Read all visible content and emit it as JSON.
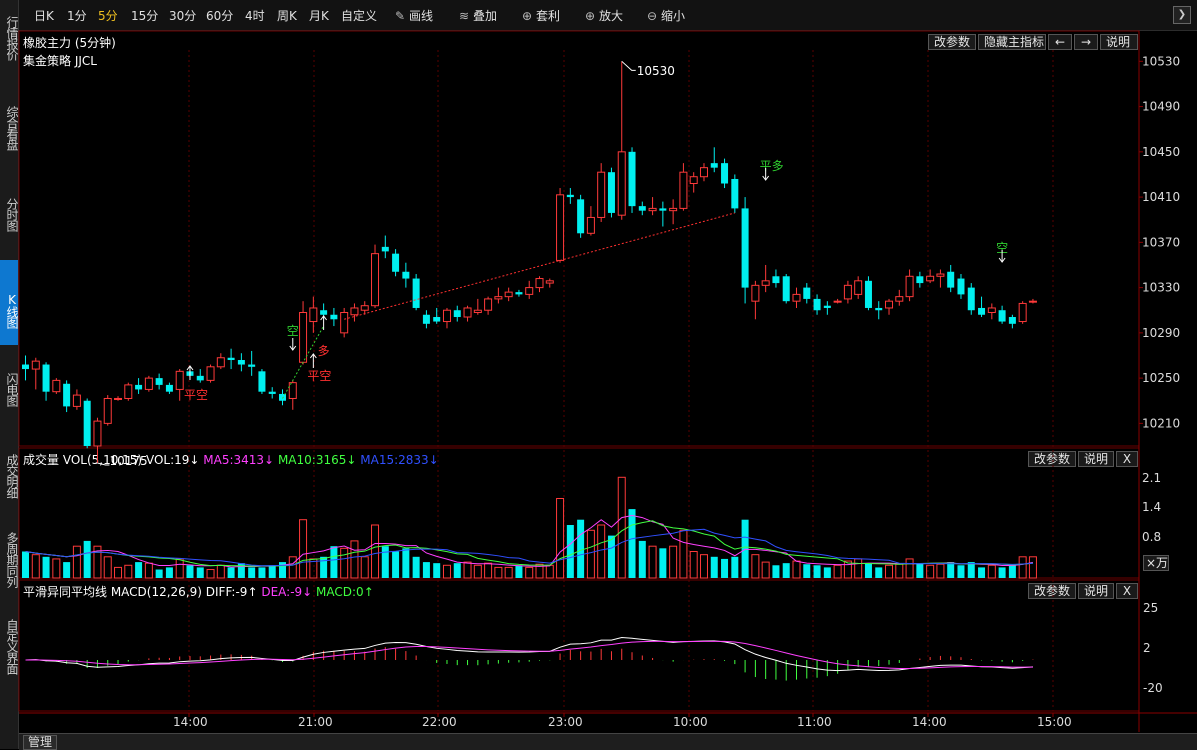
{
  "left_nav": [
    {
      "label": "行情报价",
      "active": false
    },
    {
      "label": "综合看盘",
      "active": false
    },
    {
      "label": "分时图",
      "active": false
    },
    {
      "label": "K线图",
      "active": true
    },
    {
      "label": "闪电图",
      "active": false
    },
    {
      "label": "成交明细",
      "active": false
    },
    {
      "label": "多周期同列",
      "active": false
    },
    {
      "label": "自定义界面",
      "active": false
    }
  ],
  "toolbar": {
    "periods": [
      {
        "label": "日K",
        "selected": false
      },
      {
        "label": "1分",
        "selected": false
      },
      {
        "label": "5分",
        "selected": true
      },
      {
        "label": "15分",
        "selected": false
      },
      {
        "label": "30分",
        "selected": false
      },
      {
        "label": "60分",
        "selected": false
      },
      {
        "label": "4时",
        "selected": false
      },
      {
        "label": "周K",
        "selected": false
      },
      {
        "label": "月K",
        "selected": false
      },
      {
        "label": "自定义",
        "selected": false
      }
    ],
    "tools": [
      {
        "label": "画线",
        "icon": "pencil-icon"
      },
      {
        "label": "叠加",
        "icon": "stack-icon"
      },
      {
        "label": "套利",
        "icon": "arbitrage-icon"
      },
      {
        "label": "放大",
        "icon": "zoom-in-icon"
      },
      {
        "label": "缩小",
        "icon": "zoom-out-icon"
      }
    ],
    "expand_icon": "expand-icon"
  },
  "main_panel": {
    "title": "橡胶主力 (5分钟)",
    "strategy": "集金策略 JJCL",
    "buttons": [
      "改参数",
      "隐藏主指标",
      "←",
      "→",
      "说明"
    ],
    "y_ticks": [
      "10530",
      "10490",
      "10450",
      "10410",
      "10370",
      "10330",
      "10290",
      "10250",
      "10210"
    ],
    "annotations": {
      "high": "10530",
      "low": "10175"
    },
    "signals": [
      {
        "text": "平空",
        "color": "#ff3030"
      },
      {
        "text": "空",
        "color": "#30d030"
      },
      {
        "text": "平空",
        "color": "#ff3030"
      },
      {
        "text": "多",
        "color": "#ff3030"
      },
      {
        "text": "平多",
        "color": "#30d030"
      },
      {
        "text": "空",
        "color": "#30d030"
      }
    ]
  },
  "vol_panel": {
    "label": "成交量 VOL(5,10,15)",
    "vol": "VOL:19↓",
    "ma5": "MA5:3413↓",
    "ma10": "MA10:3165↓",
    "ma15": "MA15:2833↓",
    "buttons": [
      "改参数",
      "说明",
      "X"
    ],
    "y_ticks": [
      "2.1",
      "1.4",
      "0.8"
    ],
    "unit": "×万",
    "colors": {
      "ma5": "#ff40ff",
      "ma10": "#40ff40",
      "ma15": "#3050ff"
    }
  },
  "macd_panel": {
    "label": "平滑异同平均线 MACD(12,26,9)",
    "diff": "DIFF:-9↑",
    "dea": "DEA:-9↓",
    "macd": "MACD:0↑",
    "buttons": [
      "改参数",
      "说明",
      "X"
    ],
    "y_ticks": [
      "25",
      "2",
      "-20"
    ],
    "colors": {
      "diff": "#ffffff",
      "dea": "#ff40ff",
      "macd": "#40ff40"
    }
  },
  "time_axis": [
    "14:00",
    "21:00",
    "22:00",
    "23:00",
    "10:00",
    "11:00",
    "14:00",
    "15:00"
  ],
  "bottom_tab": "管理",
  "chart_data": {
    "type": "candlestick",
    "price_ylim": [
      10190,
      10540
    ],
    "candles": [
      {
        "o": 10262,
        "h": 10270,
        "l": 10248,
        "c": 10258
      },
      {
        "o": 10258,
        "h": 10268,
        "l": 10240,
        "c": 10265
      },
      {
        "o": 10262,
        "h": 10264,
        "l": 10230,
        "c": 10238
      },
      {
        "o": 10238,
        "h": 10250,
        "l": 10236,
        "c": 10248
      },
      {
        "o": 10245,
        "h": 10248,
        "l": 10220,
        "c": 10225
      },
      {
        "o": 10225,
        "h": 10240,
        "l": 10222,
        "c": 10235
      },
      {
        "o": 10230,
        "h": 10232,
        "l": 10188,
        "c": 10190
      },
      {
        "o": 10190,
        "h": 10215,
        "l": 10175,
        "c": 10212
      },
      {
        "o": 10210,
        "h": 10235,
        "l": 10208,
        "c": 10232
      },
      {
        "o": 10232,
        "h": 10234,
        "l": 10230,
        "c": 10232
      },
      {
        "o": 10232,
        "h": 10246,
        "l": 10230,
        "c": 10244
      },
      {
        "o": 10244,
        "h": 10250,
        "l": 10236,
        "c": 10240
      },
      {
        "o": 10240,
        "h": 10252,
        "l": 10238,
        "c": 10250
      },
      {
        "o": 10250,
        "h": 10254,
        "l": 10240,
        "c": 10244
      },
      {
        "o": 10244,
        "h": 10246,
        "l": 10236,
        "c": 10238
      },
      {
        "o": 10240,
        "h": 10258,
        "l": 10230,
        "c": 10256
      },
      {
        "o": 10256,
        "h": 10260,
        "l": 10250,
        "c": 10252
      },
      {
        "o": 10252,
        "h": 10258,
        "l": 10246,
        "c": 10248
      },
      {
        "o": 10248,
        "h": 10262,
        "l": 10246,
        "c": 10260
      },
      {
        "o": 10260,
        "h": 10272,
        "l": 10258,
        "c": 10268
      },
      {
        "o": 10268,
        "h": 10276,
        "l": 10258,
        "c": 10266
      },
      {
        "o": 10266,
        "h": 10272,
        "l": 10256,
        "c": 10262
      },
      {
        "o": 10262,
        "h": 10274,
        "l": 10252,
        "c": 10260
      },
      {
        "o": 10256,
        "h": 10258,
        "l": 10236,
        "c": 10238
      },
      {
        "o": 10238,
        "h": 10242,
        "l": 10232,
        "c": 10236
      },
      {
        "o": 10236,
        "h": 10240,
        "l": 10226,
        "c": 10230
      },
      {
        "o": 10232,
        "h": 10248,
        "l": 10222,
        "c": 10246
      },
      {
        "o": 10264,
        "h": 10318,
        "l": 10262,
        "c": 10308
      },
      {
        "o": 10300,
        "h": 10322,
        "l": 10290,
        "c": 10312
      },
      {
        "o": 10310,
        "h": 10316,
        "l": 10302,
        "c": 10306
      },
      {
        "o": 10306,
        "h": 10312,
        "l": 10296,
        "c": 10302
      },
      {
        "o": 10290,
        "h": 10312,
        "l": 10286,
        "c": 10308
      },
      {
        "o": 10306,
        "h": 10316,
        "l": 10300,
        "c": 10312
      },
      {
        "o": 10310,
        "h": 10318,
        "l": 10306,
        "c": 10314
      },
      {
        "o": 10314,
        "h": 10368,
        "l": 10312,
        "c": 10360
      },
      {
        "o": 10366,
        "h": 10376,
        "l": 10356,
        "c": 10362
      },
      {
        "o": 10360,
        "h": 10364,
        "l": 10340,
        "c": 10344
      },
      {
        "o": 10344,
        "h": 10352,
        "l": 10330,
        "c": 10338
      },
      {
        "o": 10338,
        "h": 10342,
        "l": 10310,
        "c": 10312
      },
      {
        "o": 10306,
        "h": 10310,
        "l": 10294,
        "c": 10298
      },
      {
        "o": 10304,
        "h": 10312,
        "l": 10298,
        "c": 10300
      },
      {
        "o": 10300,
        "h": 10312,
        "l": 10294,
        "c": 10310
      },
      {
        "o": 10310,
        "h": 10314,
        "l": 10300,
        "c": 10304
      },
      {
        "o": 10304,
        "h": 10314,
        "l": 10300,
        "c": 10312
      },
      {
        "o": 10308,
        "h": 10320,
        "l": 10306,
        "c": 10310
      },
      {
        "o": 10310,
        "h": 10322,
        "l": 10306,
        "c": 10320
      },
      {
        "o": 10320,
        "h": 10330,
        "l": 10316,
        "c": 10322
      },
      {
        "o": 10322,
        "h": 10330,
        "l": 10318,
        "c": 10326
      },
      {
        "o": 10326,
        "h": 10328,
        "l": 10322,
        "c": 10324
      },
      {
        "o": 10324,
        "h": 10336,
        "l": 10320,
        "c": 10330
      },
      {
        "o": 10330,
        "h": 10340,
        "l": 10326,
        "c": 10338
      },
      {
        "o": 10334,
        "h": 10338,
        "l": 10330,
        "c": 10336
      },
      {
        "o": 10354,
        "h": 10418,
        "l": 10352,
        "c": 10412
      },
      {
        "o": 10412,
        "h": 10418,
        "l": 10404,
        "c": 10410
      },
      {
        "o": 10408,
        "h": 10412,
        "l": 10374,
        "c": 10378
      },
      {
        "o": 10378,
        "h": 10402,
        "l": 10376,
        "c": 10392
      },
      {
        "o": 10392,
        "h": 10440,
        "l": 10388,
        "c": 10432
      },
      {
        "o": 10432,
        "h": 10436,
        "l": 10392,
        "c": 10396
      },
      {
        "o": 10394,
        "h": 10530,
        "l": 10390,
        "c": 10450
      },
      {
        "o": 10450,
        "h": 10454,
        "l": 10396,
        "c": 10402
      },
      {
        "o": 10402,
        "h": 10406,
        "l": 10394,
        "c": 10398
      },
      {
        "o": 10398,
        "h": 10410,
        "l": 10394,
        "c": 10400
      },
      {
        "o": 10400,
        "h": 10406,
        "l": 10384,
        "c": 10398
      },
      {
        "o": 10398,
        "h": 10408,
        "l": 10386,
        "c": 10400
      },
      {
        "o": 10400,
        "h": 10440,
        "l": 10398,
        "c": 10432
      },
      {
        "o": 10422,
        "h": 10432,
        "l": 10414,
        "c": 10428
      },
      {
        "o": 10428,
        "h": 10440,
        "l": 10424,
        "c": 10436
      },
      {
        "o": 10440,
        "h": 10454,
        "l": 10432,
        "c": 10436
      },
      {
        "o": 10440,
        "h": 10444,
        "l": 10418,
        "c": 10422
      },
      {
        "o": 10426,
        "h": 10430,
        "l": 10396,
        "c": 10400
      },
      {
        "o": 10400,
        "h": 10410,
        "l": 10316,
        "c": 10330
      },
      {
        "o": 10318,
        "h": 10336,
        "l": 10302,
        "c": 10332
      },
      {
        "o": 10332,
        "h": 10350,
        "l": 10326,
        "c": 10336
      },
      {
        "o": 10340,
        "h": 10346,
        "l": 10330,
        "c": 10334
      },
      {
        "o": 10340,
        "h": 10342,
        "l": 10316,
        "c": 10318
      },
      {
        "o": 10318,
        "h": 10330,
        "l": 10312,
        "c": 10324
      },
      {
        "o": 10330,
        "h": 10334,
        "l": 10316,
        "c": 10320
      },
      {
        "o": 10320,
        "h": 10324,
        "l": 10306,
        "c": 10310
      },
      {
        "o": 10314,
        "h": 10318,
        "l": 10306,
        "c": 10312
      },
      {
        "o": 10318,
        "h": 10320,
        "l": 10316,
        "c": 10318
      },
      {
        "o": 10320,
        "h": 10336,
        "l": 10316,
        "c": 10332
      },
      {
        "o": 10324,
        "h": 10340,
        "l": 10320,
        "c": 10336
      },
      {
        "o": 10336,
        "h": 10340,
        "l": 10310,
        "c": 10312
      },
      {
        "o": 10312,
        "h": 10318,
        "l": 10302,
        "c": 10310
      },
      {
        "o": 10312,
        "h": 10320,
        "l": 10306,
        "c": 10318
      },
      {
        "o": 10318,
        "h": 10328,
        "l": 10314,
        "c": 10322
      },
      {
        "o": 10322,
        "h": 10346,
        "l": 10318,
        "c": 10340
      },
      {
        "o": 10340,
        "h": 10344,
        "l": 10330,
        "c": 10334
      },
      {
        "o": 10336,
        "h": 10346,
        "l": 10334,
        "c": 10340
      },
      {
        "o": 10340,
        "h": 10346,
        "l": 10330,
        "c": 10342
      },
      {
        "o": 10344,
        "h": 10350,
        "l": 10326,
        "c": 10330
      },
      {
        "o": 10338,
        "h": 10342,
        "l": 10320,
        "c": 10324
      },
      {
        "o": 10330,
        "h": 10334,
        "l": 10306,
        "c": 10310
      },
      {
        "o": 10312,
        "h": 10322,
        "l": 10304,
        "c": 10306
      },
      {
        "o": 10308,
        "h": 10316,
        "l": 10302,
        "c": 10312
      },
      {
        "o": 10310,
        "h": 10314,
        "l": 10298,
        "c": 10300
      },
      {
        "o": 10304,
        "h": 10306,
        "l": 10294,
        "c": 10298
      },
      {
        "o": 10300,
        "h": 10318,
        "l": 10298,
        "c": 10316
      },
      {
        "o": 10318,
        "h": 10320,
        "l": 10316,
        "c": 10318
      }
    ]
  }
}
